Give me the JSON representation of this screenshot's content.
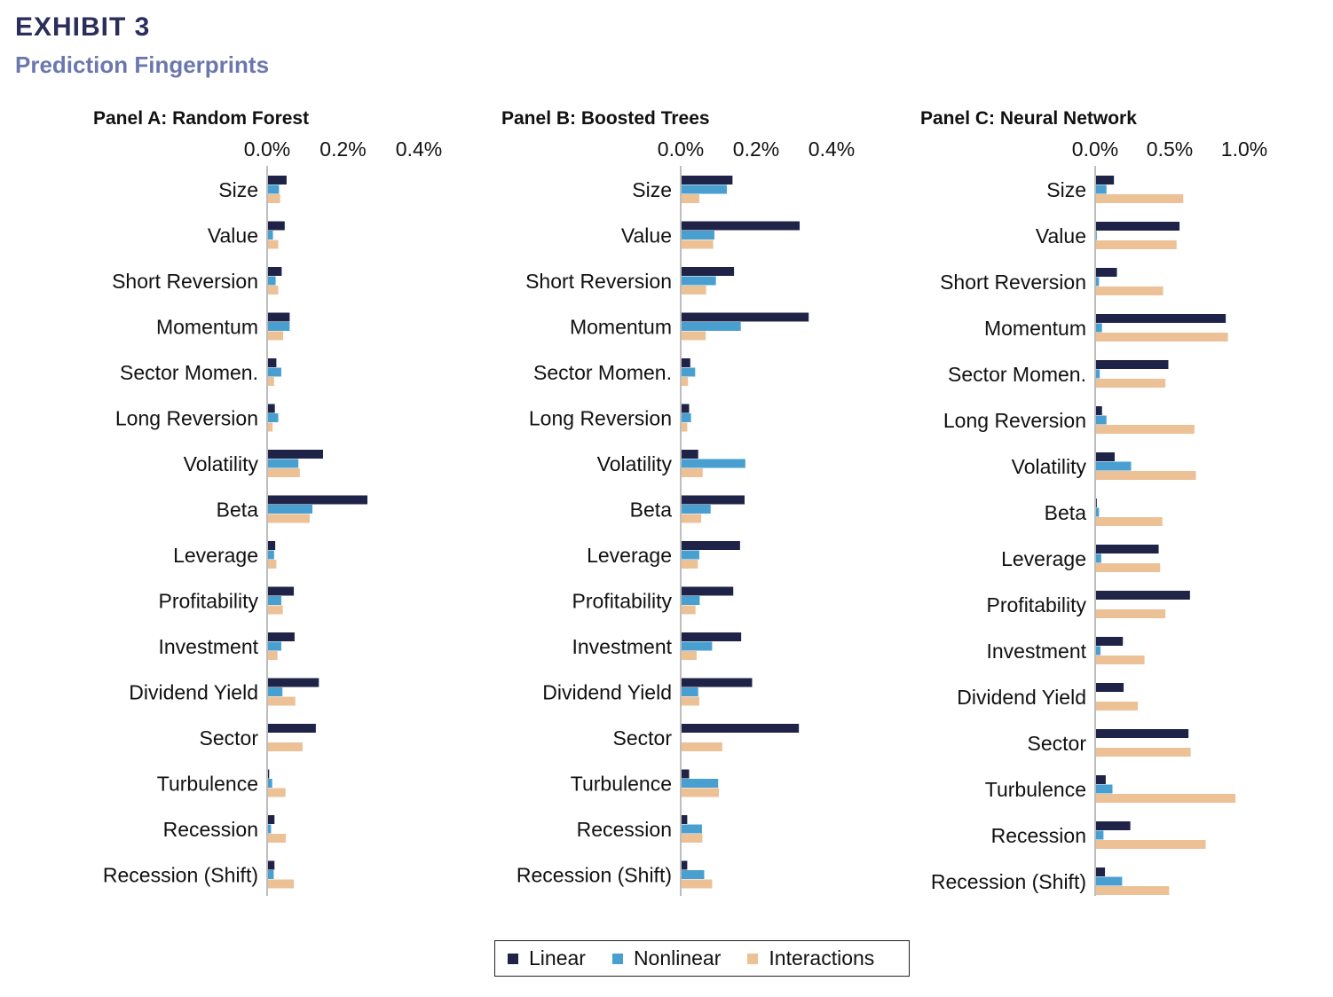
{
  "header": {
    "exhibit": "EXHIBIT 3",
    "title": "Prediction Fingerprints"
  },
  "legend": {
    "items": [
      {
        "label": "Linear",
        "color": "#1f2347"
      },
      {
        "label": "Nonlinear",
        "color": "#4a9fd1"
      },
      {
        "label": "Interactions",
        "color": "#ecc196"
      }
    ]
  },
  "chart_data": [
    {
      "type": "bar",
      "orientation": "horizontal",
      "title": "Panel A: Random Forest",
      "xlim": [
        0,
        0.45
      ],
      "ticks": [
        0,
        0.2,
        0.4
      ],
      "tick_labels": [
        "0.0%",
        "0.2%",
        "0.4%"
      ],
      "categories": [
        "Size",
        "Value",
        "Short Reversion",
        "Momentum",
        "Sector Momen.",
        "Long Reversion",
        "Volatility",
        "Beta",
        "Leverage",
        "Profitability",
        "Investment",
        "Dividend Yield",
        "Sector",
        "Turbulence",
        "Recession",
        "Recession (Shift)"
      ],
      "series": [
        {
          "name": "Linear",
          "values": [
            0.049,
            0.044,
            0.036,
            0.057,
            0.022,
            0.018,
            0.145,
            0.262,
            0.019,
            0.068,
            0.07,
            0.134,
            0.126,
            0.003,
            0.017,
            0.017
          ]
        },
        {
          "name": "Nonlinear",
          "values": [
            0.029,
            0.013,
            0.02,
            0.057,
            0.035,
            0.027,
            0.08,
            0.117,
            0.016,
            0.035,
            0.035,
            0.038,
            0.0,
            0.011,
            0.008,
            0.015
          ]
        },
        {
          "name": "Interactions",
          "values": [
            0.032,
            0.027,
            0.027,
            0.04,
            0.016,
            0.012,
            0.084,
            0.11,
            0.022,
            0.039,
            0.025,
            0.072,
            0.091,
            0.046,
            0.047,
            0.068
          ]
        }
      ]
    },
    {
      "type": "bar",
      "orientation": "horizontal",
      "title": "Panel B: Boosted Trees",
      "xlim": [
        0,
        0.45
      ],
      "ticks": [
        0,
        0.2,
        0.4
      ],
      "tick_labels": [
        "0.0%",
        "0.2%",
        "0.4%"
      ],
      "categories": [
        "Size",
        "Value",
        "Short Reversion",
        "Momentum",
        "Sector Momen.",
        "Long Reversion",
        "Volatility",
        "Beta",
        "Leverage",
        "Profitability",
        "Investment",
        "Dividend Yield",
        "Sector",
        "Turbulence",
        "Recession",
        "Recession (Shift)"
      ],
      "series": [
        {
          "name": "Linear",
          "values": [
            0.135,
            0.313,
            0.139,
            0.337,
            0.023,
            0.02,
            0.044,
            0.167,
            0.155,
            0.137,
            0.158,
            0.187,
            0.311,
            0.02,
            0.015,
            0.015
          ]
        },
        {
          "name": "Nonlinear",
          "values": [
            0.12,
            0.087,
            0.091,
            0.157,
            0.036,
            0.025,
            0.169,
            0.077,
            0.047,
            0.048,
            0.081,
            0.044,
            0.0,
            0.097,
            0.054,
            0.06
          ]
        },
        {
          "name": "Interactions",
          "values": [
            0.047,
            0.084,
            0.065,
            0.064,
            0.017,
            0.015,
            0.056,
            0.052,
            0.043,
            0.037,
            0.04,
            0.047,
            0.108,
            0.099,
            0.055,
            0.081
          ]
        }
      ]
    },
    {
      "type": "bar",
      "orientation": "horizontal",
      "title": "Panel C: Neural Network",
      "xlim": [
        0,
        1.15
      ],
      "ticks": [
        0,
        0.5,
        1.0
      ],
      "tick_labels": [
        "0.0%",
        "0.5%",
        "1.0%"
      ],
      "categories": [
        "Size",
        "Value",
        "Short Reversion",
        "Momentum",
        "Sector Momen.",
        "Long Reversion",
        "Volatility",
        "Beta",
        "Leverage",
        "Profitability",
        "Investment",
        "Dividend Yield",
        "Sector",
        "Turbulence",
        "Recession",
        "Recession (Shift)"
      ],
      "series": [
        {
          "name": "Linear",
          "values": [
            0.12,
            0.56,
            0.14,
            0.87,
            0.485,
            0.04,
            0.125,
            0.005,
            0.42,
            0.63,
            0.18,
            0.185,
            0.62,
            0.065,
            0.23,
            0.06
          ]
        },
        {
          "name": "Nonlinear",
          "values": [
            0.07,
            0.005,
            0.02,
            0.04,
            0.025,
            0.07,
            0.235,
            0.02,
            0.035,
            0.0,
            0.03,
            0.0,
            0.0,
            0.11,
            0.05,
            0.175
          ]
        },
        {
          "name": "Interactions",
          "values": [
            0.585,
            0.54,
            0.45,
            0.885,
            0.465,
            0.66,
            0.67,
            0.445,
            0.43,
            0.465,
            0.325,
            0.28,
            0.635,
            0.935,
            0.735,
            0.49
          ]
        }
      ]
    }
  ]
}
